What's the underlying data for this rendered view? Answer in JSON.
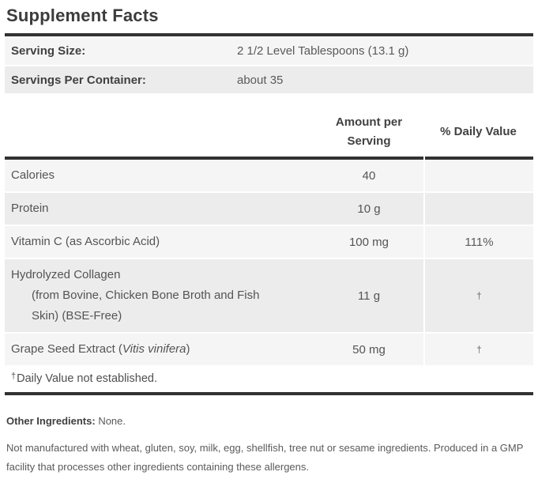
{
  "title": "Supplement Facts",
  "serving_info": [
    {
      "label": "Serving Size:",
      "value": "2 1/2 Level Tablespoons (13.1 g)"
    },
    {
      "label": "Servings Per Container:",
      "value": "about 35"
    }
  ],
  "columns": {
    "amount": "Amount per Serving",
    "daily_value": "% Daily Value"
  },
  "rows": [
    {
      "name": "Calories",
      "amount": "40",
      "dv": ""
    },
    {
      "name": "Protein",
      "amount": "10 g",
      "dv": ""
    },
    {
      "name": "Vitamin C (as Ascorbic Acid)",
      "amount": "100 mg",
      "dv": "111%"
    },
    {
      "name": "Hydrolyzed Collagen",
      "sub_lines": [
        "(from Bovine, Chicken Bone Broth and Fish",
        "Skin) (BSE-Free)"
      ],
      "amount": "11 g",
      "dv": "†"
    },
    {
      "name_prefix": "Grape Seed Extract (",
      "name_italic": "Vitis vinifera",
      "name_suffix": ")",
      "amount": "50 mg",
      "dv": "†"
    }
  ],
  "footnote": {
    "dagger": "†",
    "text": "Daily Value not established."
  },
  "other_ingredients": {
    "label": "Other Ingredients:",
    "value": "None."
  },
  "allergen_statement": "Not manufactured with wheat, gluten, soy, milk, egg, shellfish, tree nut or sesame ingredients. Produced in a GMP facility that processes other ingredients containing these allergens.",
  "colors": {
    "rule": "#323232",
    "row_light": "#f5f5f5",
    "row_dark": "#ececec"
  }
}
